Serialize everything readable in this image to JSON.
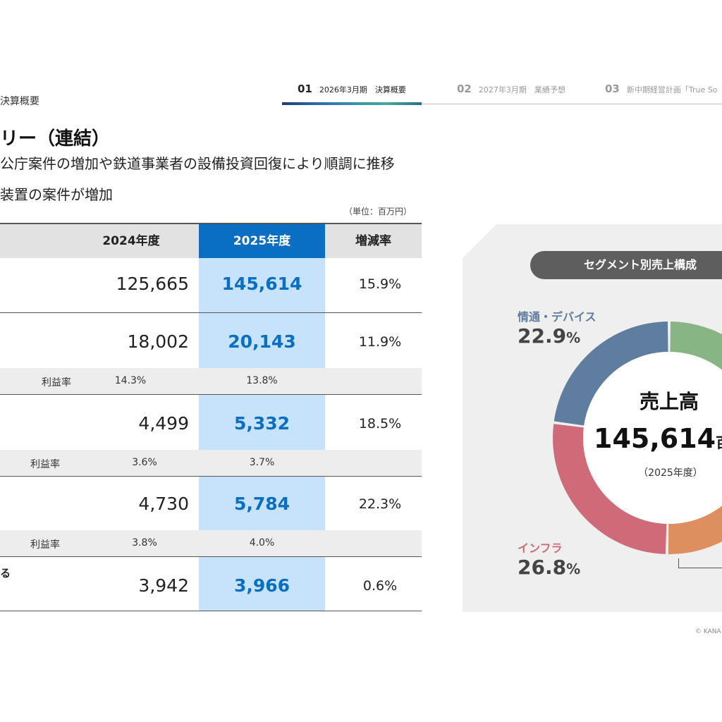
{
  "header": {
    "section_label": "決算概要",
    "tabs": [
      {
        "num": "01",
        "label": "2026年3月期　決算概要"
      },
      {
        "num": "02",
        "label": "2027年3月期　業績予想"
      },
      {
        "num": "03",
        "label": "新中期経営計画「True So"
      }
    ]
  },
  "title": "リー（連結）",
  "bullets": [
    "公庁案件の増加や鉄道事業者の設備投資回復により順調に推移",
    "装置の案件が増加"
  ],
  "table": {
    "unit": "（単位：百万円）",
    "columns": [
      "2024年度",
      "2025年度",
      "増減率"
    ],
    "rows": [
      {
        "label": "",
        "v2024": "125,665",
        "v2025": "145,614",
        "rate": "15.9%"
      },
      {
        "label": "",
        "v2024": "18,002",
        "v2025": "20,143",
        "rate": "11.9%",
        "margin_label": "利益率",
        "m2024": "14.3%",
        "m2025": "13.8%"
      },
      {
        "label": "",
        "v2024": "4,499",
        "v2025": "5,332",
        "rate": "18.5%",
        "margin_label": "利益率",
        "m2024": "3.6%",
        "m2025": "3.7%"
      },
      {
        "label": "",
        "v2024": "4,730",
        "v2025": "5,784",
        "rate": "22.3%",
        "margin_label": "利益率",
        "m2024": "3.8%",
        "m2025": "4.0%"
      },
      {
        "label": "る",
        "v2024": "3,942",
        "v2025": "3,966",
        "rate": "0.6%"
      }
    ]
  },
  "segment_panel": {
    "title": "セグメント別売上構成",
    "center_title": "売上高",
    "center_value": "145,614",
    "center_unit": "百万円",
    "center_sub": "（2025年度）",
    "segments": [
      {
        "name": "情通・デバイス",
        "share": 22.9,
        "pct_num": "22.9",
        "pct_unit": "%",
        "color": "#5f7d9e"
      },
      {
        "name": "インフラ",
        "share": 26.8,
        "pct_num": "26.8",
        "pct_unit": "%",
        "color": "#cf6a78"
      },
      {
        "name": "",
        "share": 19.0,
        "color": "#de8f5f"
      },
      {
        "name": "",
        "share": 31.3,
        "color": "#87b583"
      }
    ]
  },
  "copyright": "© KANA"
}
